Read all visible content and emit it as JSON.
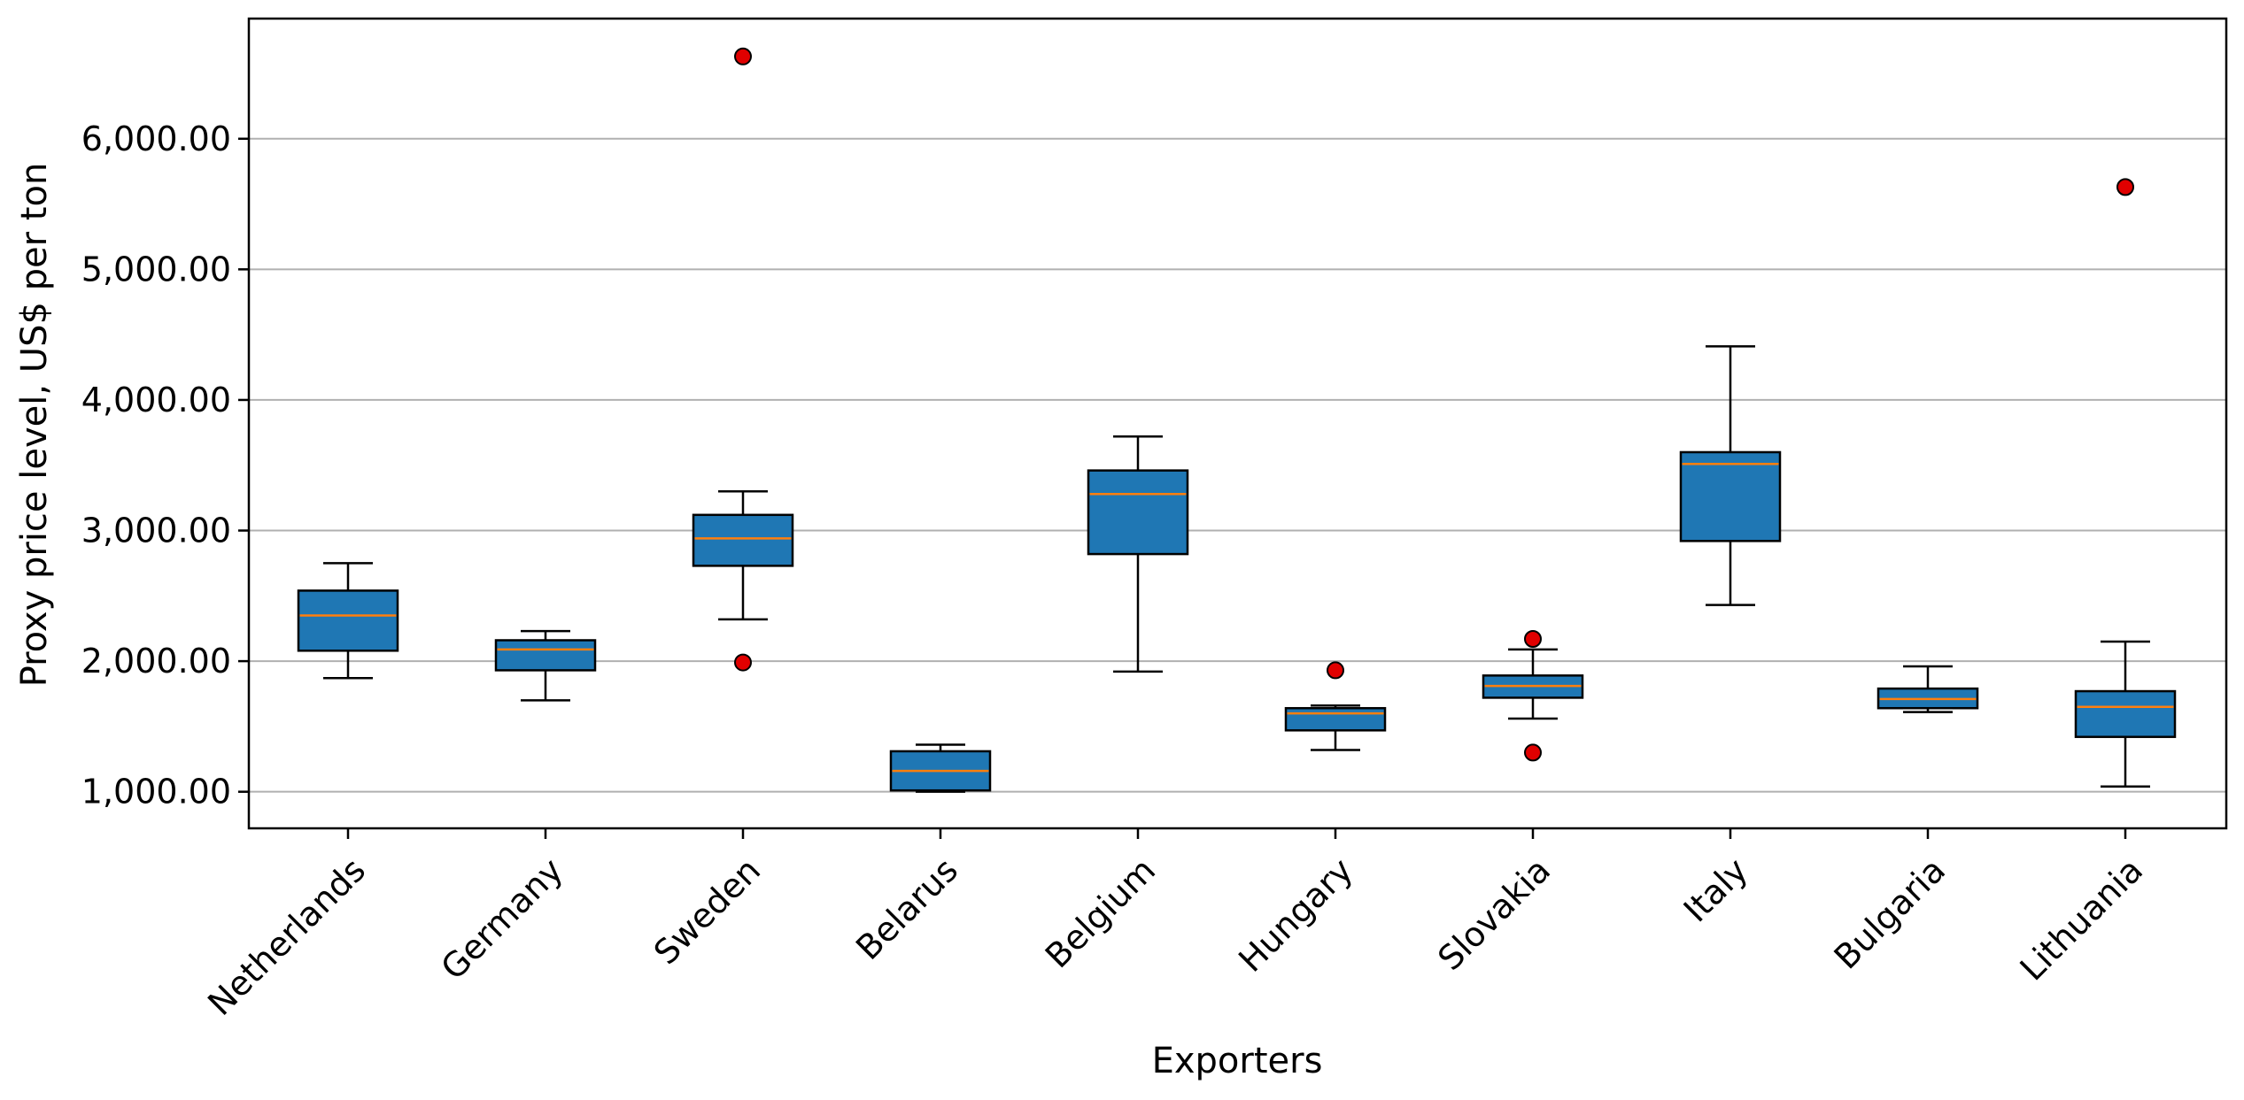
{
  "chart_data": {
    "type": "box",
    "xlabel": "Exporters",
    "ylabel": "Proxy price level, US$ per ton",
    "ylim": [
      720,
      6920
    ],
    "yticks": [
      1000,
      2000,
      3000,
      4000,
      5000,
      6000
    ],
    "ytick_labels": [
      "1,000.00",
      "2,000.00",
      "3,000.00",
      "4,000.00",
      "5,000.00",
      "6,000.00"
    ],
    "grid": "horizontal",
    "box_color": "#1f77b4",
    "median_color": "#ff7f0e",
    "outlier_color": "#e00000",
    "categories": [
      "Netherlands",
      "Germany",
      "Sweden",
      "Belarus",
      "Belgium",
      "Hungary",
      "Slovakia",
      "Italy",
      "Bulgaria",
      "Lithuania"
    ],
    "boxes": [
      {
        "name": "Netherlands",
        "whisker_low": 1870,
        "q1": 2080,
        "median": 2350,
        "q3": 2540,
        "whisker_high": 2750,
        "outliers": []
      },
      {
        "name": "Germany",
        "whisker_low": 1700,
        "q1": 1930,
        "median": 2090,
        "q3": 2160,
        "whisker_high": 2230,
        "outliers": []
      },
      {
        "name": "Sweden",
        "whisker_low": 2320,
        "q1": 2730,
        "median": 2940,
        "q3": 3120,
        "whisker_high": 3300,
        "outliers": [
          1990,
          6630
        ]
      },
      {
        "name": "Belarus",
        "whisker_low": 1000,
        "q1": 1010,
        "median": 1160,
        "q3": 1310,
        "whisker_high": 1360,
        "outliers": []
      },
      {
        "name": "Belgium",
        "whisker_low": 1920,
        "q1": 2820,
        "median": 3280,
        "q3": 3460,
        "whisker_high": 3720,
        "outliers": []
      },
      {
        "name": "Hungary",
        "whisker_low": 1320,
        "q1": 1470,
        "median": 1600,
        "q3": 1640,
        "whisker_high": 1660,
        "outliers": [
          1930
        ]
      },
      {
        "name": "Slovakia",
        "whisker_low": 1560,
        "q1": 1720,
        "median": 1810,
        "q3": 1890,
        "whisker_high": 2090,
        "outliers": [
          1300,
          2170
        ]
      },
      {
        "name": "Italy",
        "whisker_low": 2430,
        "q1": 2920,
        "median": 3510,
        "q3": 3600,
        "whisker_high": 4410,
        "outliers": []
      },
      {
        "name": "Bulgaria",
        "whisker_low": 1610,
        "q1": 1640,
        "median": 1710,
        "q3": 1790,
        "whisker_high": 1960,
        "outliers": []
      },
      {
        "name": "Lithuania",
        "whisker_low": 1040,
        "q1": 1420,
        "median": 1650,
        "q3": 1770,
        "whisker_high": 2150,
        "outliers": [
          5630
        ]
      }
    ]
  }
}
